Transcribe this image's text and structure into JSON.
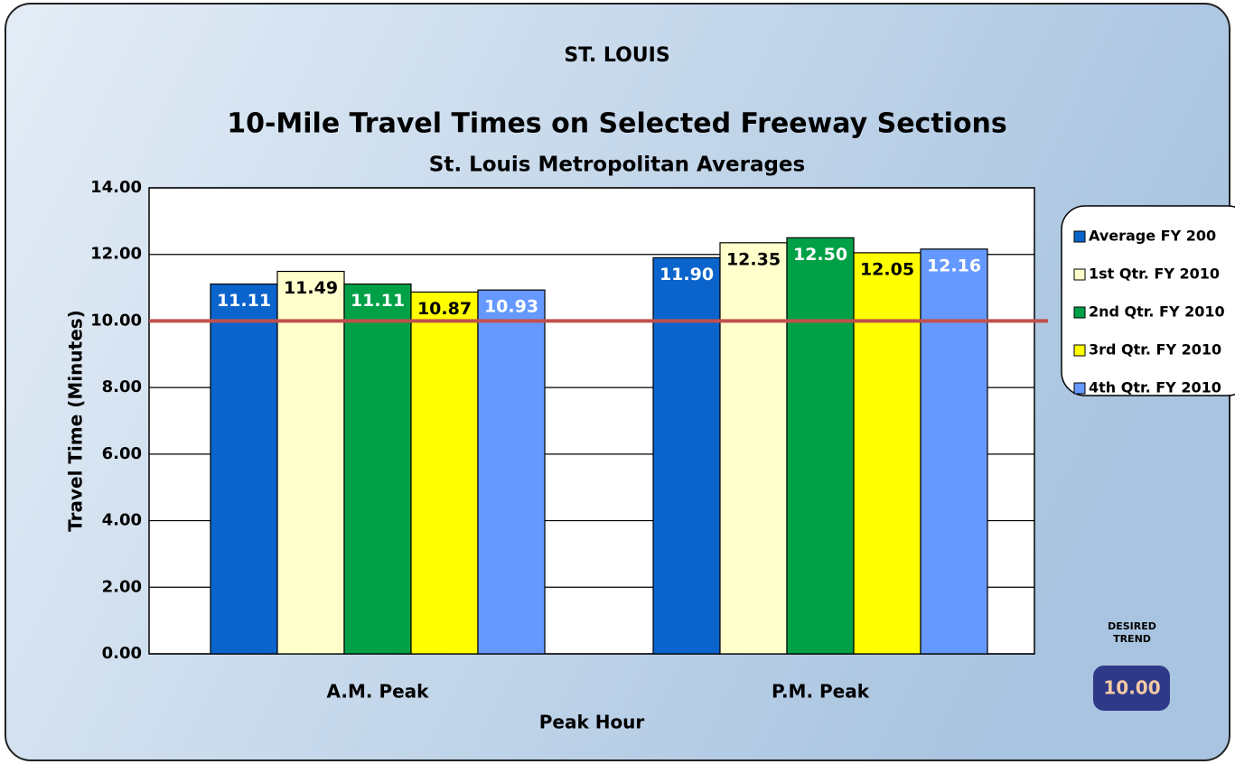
{
  "chart_data": {
    "type": "bar",
    "title": "ST. LOUIS",
    "subtitle": "10-Mile Travel Times on Selected Freeway Sections",
    "subtitle2": "St. Louis Metropolitan Averages",
    "y_label": "Travel Time (Minutes)",
    "x_label": "Peak Hour",
    "categories": [
      "A.M. Peak",
      "P.M. Peak"
    ],
    "series": [
      {
        "name": "Average FY 200",
        "color": "#0a64cc",
        "label_color": "#ffffff",
        "values": [
          11.11,
          11.9
        ],
        "value_labels": [
          "11.11",
          "11.90"
        ]
      },
      {
        "name": "1st Qtr. FY 2010",
        "color": "#ffffcc",
        "label_color": "#000000",
        "values": [
          11.49,
          12.35
        ],
        "value_labels": [
          "11.49",
          "12.35"
        ]
      },
      {
        "name": "2nd Qtr. FY 2010",
        "color": "#00a046",
        "label_color": "#ffffff",
        "values": [
          11.11,
          12.5
        ],
        "value_labels": [
          "11.11",
          "12.50"
        ]
      },
      {
        "name": "3rd Qtr. FY 2010",
        "color": "#ffff00",
        "label_color": "#000000",
        "values": [
          10.87,
          12.05
        ],
        "value_labels": [
          "10.87",
          "12.05"
        ]
      },
      {
        "name": "4th Qtr. FY 2010",
        "color": "#6699ff",
        "label_color": "#ffffff",
        "values": [
          10.93,
          12.16
        ],
        "value_labels": [
          "10.93",
          "12.16"
        ]
      }
    ],
    "ylim": [
      0,
      14
    ],
    "yticks": [
      {
        "value": 0,
        "label": "0.00"
      },
      {
        "value": 2,
        "label": "2.00"
      },
      {
        "value": 4,
        "label": "4.00"
      },
      {
        "value": 6,
        "label": "6.00"
      },
      {
        "value": 8,
        "label": "8.00"
      },
      {
        "value": 10,
        "label": "10.00"
      },
      {
        "value": 12,
        "label": "12.00"
      },
      {
        "value": 14,
        "label": "14.00"
      }
    ],
    "grid": true,
    "legend": "right",
    "target": {
      "value": 10,
      "label": "10.00",
      "color": "#c0504d"
    },
    "target_title": [
      "DESIRED",
      "TREND"
    ]
  }
}
